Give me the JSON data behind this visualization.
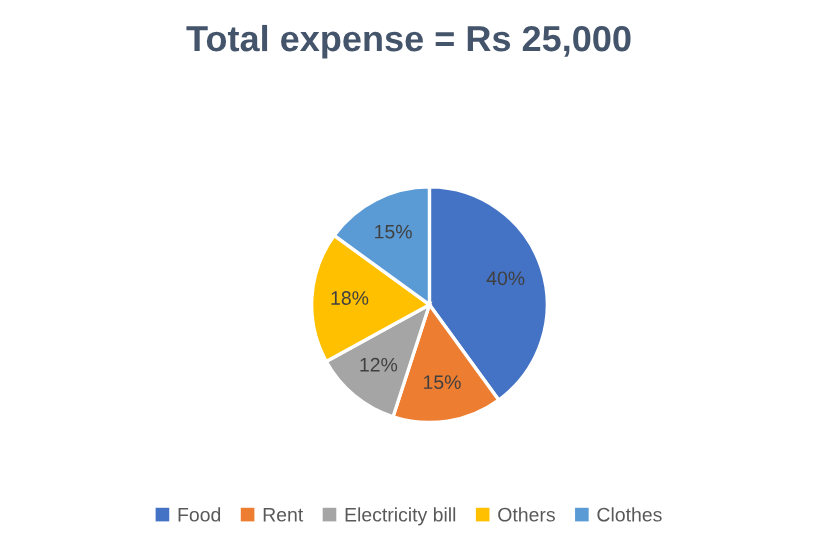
{
  "chart_data": {
    "type": "pie",
    "title": "Total expense = Rs 25,000",
    "categories": [
      "Food",
      "Rent",
      "Electricity bill",
      "Others",
      "Clothes"
    ],
    "values": [
      40,
      15,
      12,
      18,
      15
    ],
    "colors": [
      "#4472c4",
      "#ed7d31",
      "#a5a5a5",
      "#ffc000",
      "#5b9bd5"
    ],
    "value_labels": [
      "40%",
      "15%",
      "12%",
      "18%",
      "15%"
    ],
    "legend": "bottom"
  }
}
